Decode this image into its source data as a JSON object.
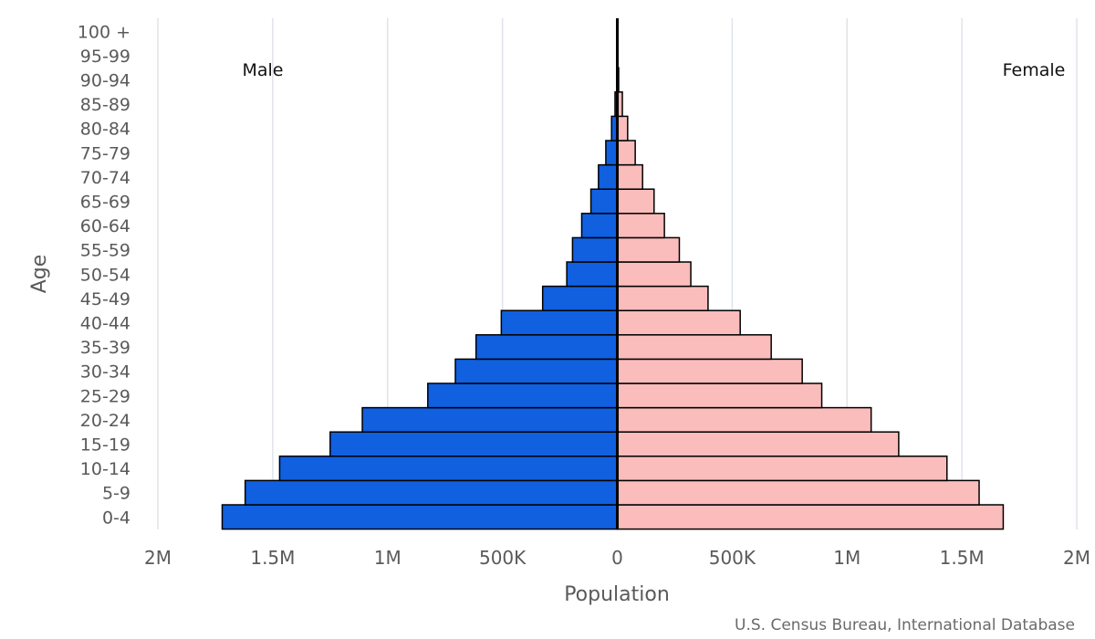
{
  "chart_data": {
    "type": "bar",
    "orientation": "horizontal",
    "xlabel": "Population",
    "ylabel": "Age",
    "xlim": [
      -2000000,
      2000000
    ],
    "x_ticks": [
      -2000000,
      -1500000,
      -1000000,
      -500000,
      0,
      500000,
      1000000,
      1500000,
      2000000
    ],
    "x_tick_labels": [
      "2M",
      "1.5M",
      "1M",
      "500K",
      "0",
      "500K",
      "1M",
      "1.5M",
      "2M"
    ],
    "grid": true,
    "categories": [
      "0-4",
      "5-9",
      "10-14",
      "15-19",
      "20-24",
      "25-29",
      "30-34",
      "35-39",
      "40-44",
      "45-49",
      "50-54",
      "55-59",
      "60-64",
      "65-69",
      "70-74",
      "75-79",
      "80-84",
      "85-89",
      "90-94",
      "95-99",
      "100 +"
    ],
    "series": [
      {
        "name": "Male",
        "color": "#1060e0",
        "values": [
          1720000,
          1620000,
          1470000,
          1250000,
          1110000,
          825000,
          705000,
          615000,
          505000,
          325000,
          220000,
          195000,
          155000,
          115000,
          82000,
          50000,
          25000,
          10000,
          3000,
          1000,
          300
        ]
      },
      {
        "name": "Female",
        "color": "#fbbcbc",
        "values": [
          1680000,
          1575000,
          1435000,
          1225000,
          1105000,
          890000,
          805000,
          670000,
          535000,
          395000,
          320000,
          270000,
          205000,
          160000,
          110000,
          78000,
          45000,
          22000,
          6000,
          1500,
          300
        ]
      }
    ],
    "annotations": {
      "left": "Male",
      "right": "Female"
    },
    "source": "U.S. Census Bureau, International Database"
  }
}
